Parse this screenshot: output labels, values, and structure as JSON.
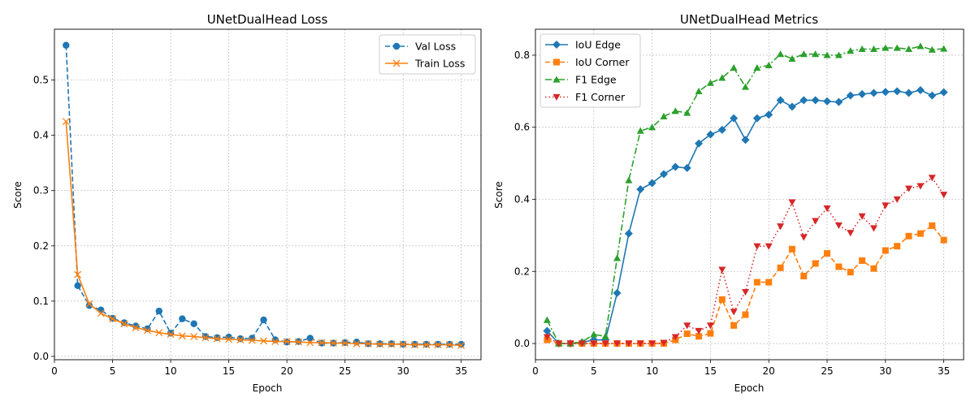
{
  "chart_data": [
    {
      "type": "line",
      "title": "UNetDualHead Loss",
      "xlabel": "Epoch",
      "ylabel": "Score",
      "xlim": [
        0,
        36.7
      ],
      "ylim": [
        -0.006,
        0.592
      ],
      "xticks": [
        0,
        5,
        10,
        15,
        20,
        25,
        30,
        35
      ],
      "yticks": [
        0.0,
        0.1,
        0.2,
        0.3,
        0.4,
        0.5
      ],
      "grid": true,
      "legend": "top-right",
      "x": [
        1,
        2,
        3,
        4,
        5,
        6,
        7,
        8,
        9,
        10,
        11,
        12,
        13,
        14,
        15,
        16,
        17,
        18,
        19,
        20,
        21,
        22,
        23,
        24,
        25,
        26,
        27,
        28,
        29,
        30,
        31,
        32,
        33,
        34,
        35
      ],
      "series": [
        {
          "name": "Val Loss",
          "color": "#1f77b4",
          "linestyle": "dashed",
          "marker": "circle",
          "values": [
            0.563,
            0.128,
            0.092,
            0.084,
            0.069,
            0.061,
            0.055,
            0.05,
            0.082,
            0.042,
            0.068,
            0.059,
            0.036,
            0.034,
            0.035,
            0.032,
            0.033,
            0.066,
            0.03,
            0.026,
            0.027,
            0.033,
            0.024,
            0.024,
            0.025,
            0.026,
            0.023,
            0.023,
            0.023,
            0.022,
            0.022,
            0.022,
            0.022,
            0.022,
            0.022
          ]
        },
        {
          "name": "Train Loss",
          "color": "#ff7f0e",
          "linestyle": "solid",
          "marker": "x",
          "values": [
            0.425,
            0.148,
            0.095,
            0.078,
            0.068,
            0.059,
            0.052,
            0.047,
            0.043,
            0.04,
            0.037,
            0.036,
            0.034,
            0.032,
            0.031,
            0.03,
            0.029,
            0.028,
            0.027,
            0.027,
            0.026,
            0.025,
            0.025,
            0.024,
            0.024,
            0.023,
            0.023,
            0.022,
            0.022,
            0.022,
            0.021,
            0.021,
            0.021,
            0.021,
            0.02
          ]
        }
      ]
    },
    {
      "type": "line",
      "title": "UNetDualHead Metrics",
      "xlabel": "Epoch",
      "ylabel": "Score",
      "xlim": [
        0,
        36.7
      ],
      "ylim": [
        -0.045,
        0.872
      ],
      "xticks": [
        0,
        5,
        10,
        15,
        20,
        25,
        30,
        35
      ],
      "yticks": [
        0.0,
        0.2,
        0.4,
        0.6,
        0.8
      ],
      "grid": true,
      "legend": "top-left",
      "x": [
        1,
        2,
        3,
        4,
        5,
        6,
        7,
        8,
        9,
        10,
        11,
        12,
        13,
        14,
        15,
        16,
        17,
        18,
        19,
        20,
        21,
        22,
        23,
        24,
        25,
        26,
        27,
        28,
        29,
        30,
        31,
        32,
        33,
        34,
        35
      ],
      "series": [
        {
          "name": "IoU Edge",
          "color": "#1f77b4",
          "linestyle": "solid",
          "marker": "diamond",
          "values": [
            0.035,
            0.0,
            0.0,
            0.003,
            0.01,
            0.01,
            0.14,
            0.305,
            0.428,
            0.445,
            0.47,
            0.49,
            0.487,
            0.555,
            0.58,
            0.593,
            0.625,
            0.565,
            0.625,
            0.635,
            0.675,
            0.657,
            0.675,
            0.675,
            0.672,
            0.67,
            0.688,
            0.692,
            0.695,
            0.698,
            0.7,
            0.695,
            0.703,
            0.688,
            0.697
          ]
        },
        {
          "name": "IoU Corner",
          "color": "#ff7f0e",
          "linestyle": "dashed",
          "marker": "square",
          "values": [
            0.01,
            0.0,
            0.0,
            0.0,
            0.0,
            0.0,
            0.0,
            0.0,
            0.0,
            0.0,
            0.0,
            0.01,
            0.027,
            0.02,
            0.028,
            0.122,
            0.05,
            0.08,
            0.17,
            0.17,
            0.21,
            0.262,
            0.187,
            0.222,
            0.25,
            0.213,
            0.198,
            0.23,
            0.208,
            0.258,
            0.27,
            0.298,
            0.305,
            0.327,
            0.287
          ]
        },
        {
          "name": "F1 Edge",
          "color": "#2ca02c",
          "linestyle": "dashdot",
          "marker": "triangle-up",
          "values": [
            0.065,
            0.0,
            0.0,
            0.005,
            0.025,
            0.02,
            0.237,
            0.453,
            0.59,
            0.6,
            0.63,
            0.645,
            0.64,
            0.7,
            0.723,
            0.737,
            0.765,
            0.712,
            0.765,
            0.772,
            0.803,
            0.79,
            0.803,
            0.803,
            0.8,
            0.8,
            0.812,
            0.817,
            0.817,
            0.82,
            0.82,
            0.817,
            0.825,
            0.815,
            0.818
          ]
        },
        {
          "name": "F1 Corner",
          "color": "#d62728",
          "linestyle": "dotted",
          "marker": "triangle-down",
          "values": [
            0.018,
            0.0,
            0.0,
            0.0,
            0.0,
            0.0,
            0.0,
            0.0,
            0.0,
            0.0,
            0.002,
            0.018,
            0.05,
            0.035,
            0.05,
            0.205,
            0.088,
            0.143,
            0.27,
            0.27,
            0.325,
            0.392,
            0.295,
            0.34,
            0.375,
            0.328,
            0.307,
            0.353,
            0.32,
            0.383,
            0.4,
            0.43,
            0.437,
            0.46,
            0.413
          ]
        }
      ]
    }
  ]
}
